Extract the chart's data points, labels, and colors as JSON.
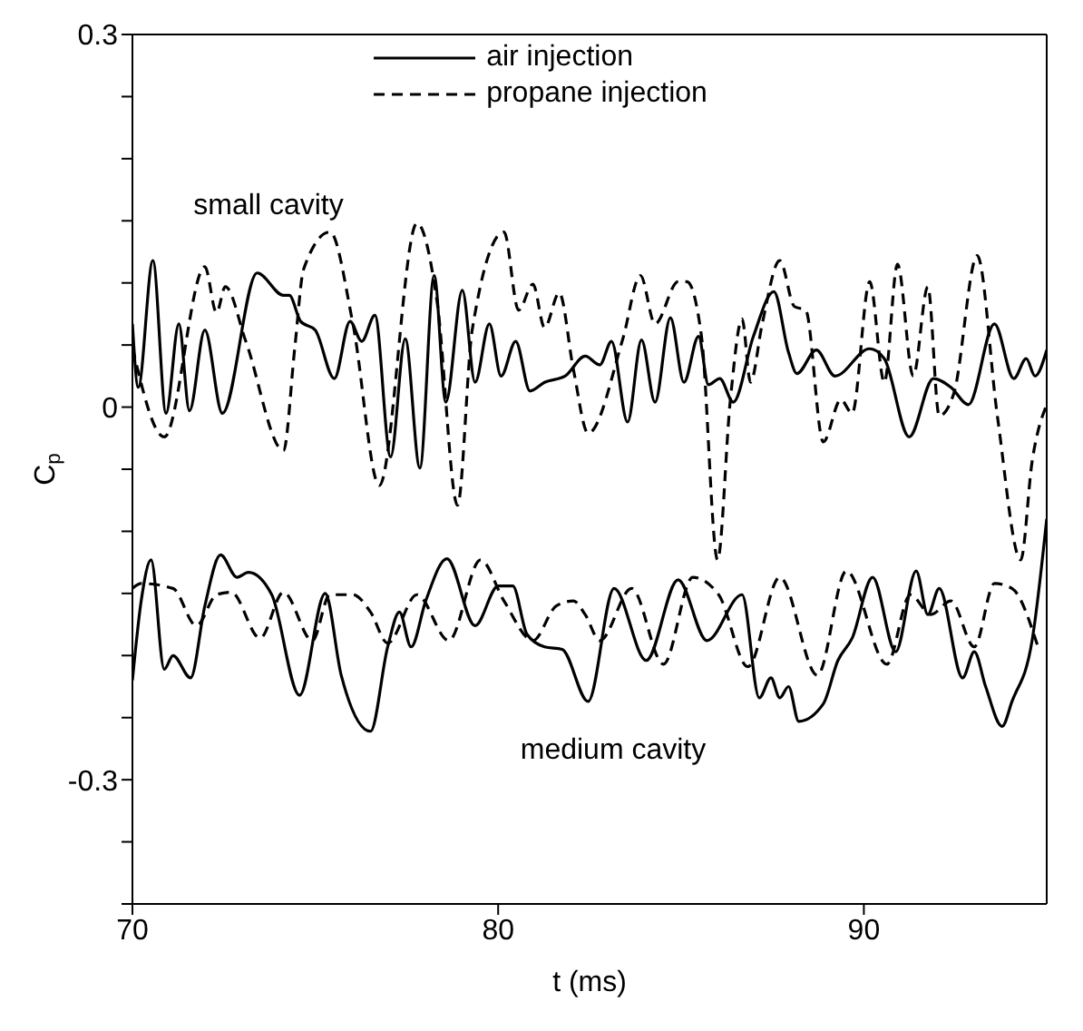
{
  "chart_data": {
    "type": "line",
    "xlabel": "t (ms)",
    "ylabel": "C$_{p}$",
    "xlim": [
      70,
      95
    ],
    "xticks": [
      70,
      80,
      90
    ],
    "ylim": [
      -0.4,
      0.3
    ],
    "yticks": [
      {
        "value": -0.4,
        "label": null
      },
      {
        "value": -0.35,
        "label": null
      },
      -0.3,
      {
        "value": -0.25,
        "label": null
      },
      {
        "value": -0.2,
        "label": null
      },
      {
        "value": -0.15,
        "label": null
      },
      {
        "value": -0.1,
        "label": null
      },
      {
        "value": -0.05,
        "label": null
      },
      0,
      {
        "value": 0.05,
        "label": null
      },
      {
        "value": 0.1,
        "label": null
      },
      {
        "value": 0.15,
        "label": null
      },
      {
        "value": 0.2,
        "label": null
      },
      {
        "value": 0.25,
        "label": null
      },
      0.3
    ],
    "legend": "top",
    "grid": false,
    "marker": "none",
    "annotations": [
      "small cavity",
      "medium cavity"
    ],
    "series": [
      {
        "name": "air injection",
        "color": "#000000",
        "line_style": "solid",
        "x": [
          70,
          70.16,
          70.56,
          70.92,
          71.27,
          71.56,
          71.98,
          72.46,
          73.41,
          74.13,
          74.29,
          74.6,
          75.0,
          75.52,
          75.95,
          76.27,
          76.63,
          77.06,
          77.46,
          77.86,
          78.25,
          78.57,
          79.02,
          79.37,
          79.76,
          80.08,
          80.48,
          80.87,
          81.27,
          81.83,
          82.38,
          82.78,
          83.1,
          83.54,
          83.92,
          84.29,
          84.71,
          85.08,
          85.48,
          85.75,
          86.06,
          86.43,
          86.98,
          87.54,
          87.94,
          88.17,
          88.7,
          89.21,
          90.16,
          90.56,
          91.24,
          91.9,
          92.38,
          92.86,
          93.57,
          94.1,
          94.44,
          94.68,
          95.0
        ],
        "values": [
          0.067,
          0.016,
          0.118,
          -0.005,
          0.067,
          -0.003,
          0.062,
          -0.005,
          0.108,
          0.09,
          0.09,
          0.069,
          0.062,
          0.023,
          0.069,
          0.053,
          0.074,
          -0.04,
          0.055,
          -0.049,
          0.106,
          0.004,
          0.094,
          0.02,
          0.067,
          0.025,
          0.053,
          0.013,
          0.02,
          0.025,
          0.041,
          0.034,
          0.053,
          -0.012,
          0.054,
          0.004,
          0.072,
          0.02,
          0.057,
          0.018,
          0.023,
          0.004,
          0.057,
          0.093,
          0.044,
          0.027,
          0.046,
          0.025,
          0.047,
          0.039,
          -0.024,
          0.023,
          0.016,
          0.002,
          0.067,
          0.023,
          0.039,
          0.025,
          0.046
        ]
      },
      {
        "name": "propane injection",
        "color": "#000000",
        "line_style": "dashed",
        "x": [
          70,
          70.87,
          71.98,
          72.3,
          72.54,
          73.1,
          74.13,
          74.44,
          74.68,
          75.4,
          76.03,
          76.75,
          77.78,
          78.33,
          78.89,
          79.29,
          80.16,
          80.56,
          80.95,
          81.27,
          81.67,
          82.06,
          82.46,
          83.41,
          83.89,
          84.29,
          84.92,
          85.16,
          85.56,
          86.0,
          86.35,
          86.67,
          86.9,
          87.22,
          87.7,
          88.1,
          88.41,
          88.89,
          89.37,
          89.68,
          90.16,
          90.56,
          90.92,
          91.35,
          91.75,
          92.06,
          92.46,
          93.1,
          93.65,
          94.29,
          94.6,
          95.0
        ],
        "values": [
          0.048,
          -0.024,
          0.113,
          0.076,
          0.097,
          0.053,
          -0.035,
          0.048,
          0.111,
          0.141,
          0.067,
          -0.063,
          0.148,
          0.085,
          -0.079,
          0.062,
          0.141,
          0.078,
          0.099,
          0.064,
          0.092,
          0.03,
          -0.021,
          0.055,
          0.106,
          0.067,
          0.101,
          0.101,
          0.057,
          -0.123,
          0.006,
          0.071,
          0.02,
          0.067,
          0.118,
          0.081,
          0.078,
          -0.028,
          0.006,
          -0.005,
          0.101,
          0.02,
          0.115,
          0.025,
          0.097,
          -0.007,
          0.011,
          0.122,
          -0.007,
          -0.123,
          -0.044,
          0.002
        ]
      },
      {
        "color": "#000000",
        "line_style": "solid",
        "x": [
          70,
          70.24,
          70.51,
          70.87,
          71.11,
          71.59,
          71.98,
          72.41,
          72.86,
          73.17,
          73.81,
          74.57,
          75.27,
          75.71,
          76.51,
          76.98,
          77.3,
          77.62,
          78.02,
          78.6,
          79.37,
          80.0,
          80.4,
          80.79,
          81.27,
          81.75,
          82.46,
          83.17,
          84.05,
          84.92,
          85.71,
          86.67,
          87.14,
          87.46,
          87.7,
          87.94,
          88.22,
          88.89,
          89.29,
          89.68,
          90.24,
          90.87,
          91.43,
          91.75,
          92.06,
          92.7,
          93.02,
          93.33,
          93.78,
          94.05,
          94.6,
          95.0
        ],
        "values": [
          -0.22,
          -0.156,
          -0.123,
          -0.211,
          -0.2,
          -0.218,
          -0.16,
          -0.119,
          -0.137,
          -0.133,
          -0.151,
          -0.232,
          -0.15,
          -0.216,
          -0.261,
          -0.193,
          -0.165,
          -0.193,
          -0.156,
          -0.122,
          -0.176,
          -0.144,
          -0.144,
          -0.183,
          -0.193,
          -0.195,
          -0.237,
          -0.146,
          -0.204,
          -0.139,
          -0.188,
          -0.151,
          -0.234,
          -0.218,
          -0.234,
          -0.225,
          -0.253,
          -0.239,
          -0.204,
          -0.186,
          -0.137,
          -0.197,
          -0.132,
          -0.167,
          -0.146,
          -0.218,
          -0.197,
          -0.225,
          -0.257,
          -0.237,
          -0.188,
          -0.09
        ]
      },
      {
        "color": "#000000",
        "line_style": "dashed",
        "x": [
          70,
          70.24,
          71.11,
          71.75,
          72.3,
          72.7,
          73.49,
          74.13,
          74.92,
          75.4,
          76.03,
          76.51,
          76.98,
          77.78,
          78.65,
          79.52,
          80.16,
          80.95,
          81.59,
          82.06,
          82.38,
          82.78,
          83.65,
          84.52,
          85.32,
          86.03,
          86.83,
          87.7,
          88.73,
          89.52,
          90.63,
          91.27,
          91.83,
          92.38,
          93.02,
          93.57,
          94.05,
          94.76
        ],
        "values": [
          -0.146,
          -0.142,
          -0.146,
          -0.176,
          -0.151,
          -0.149,
          -0.186,
          -0.149,
          -0.188,
          -0.151,
          -0.151,
          -0.165,
          -0.19,
          -0.151,
          -0.188,
          -0.123,
          -0.156,
          -0.188,
          -0.16,
          -0.156,
          -0.167,
          -0.188,
          -0.146,
          -0.207,
          -0.137,
          -0.151,
          -0.209,
          -0.137,
          -0.216,
          -0.132,
          -0.207,
          -0.151,
          -0.167,
          -0.156,
          -0.193,
          -0.142,
          -0.146,
          -0.193
        ]
      }
    ]
  }
}
